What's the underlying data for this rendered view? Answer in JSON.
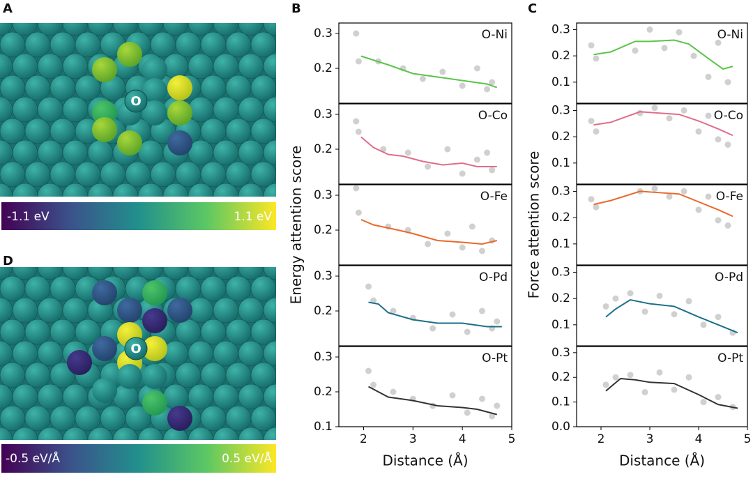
{
  "panel_labels": [
    "A",
    "B",
    "C",
    "D"
  ],
  "atom_labels": [
    "O",
    "O"
  ],
  "colorbars": [
    {
      "min_label": "-1.1 eV",
      "max_label": "1.1 eV"
    },
    {
      "min_label": "-0.5 eV/Å",
      "max_label": "0.5 eV/Å"
    }
  ],
  "chart_data": [
    {
      "type": "scatter",
      "title": "O-Ni",
      "xlim": [
        1.5,
        5
      ],
      "ylim": [
        0.1,
        0.33
      ],
      "yticks": [
        0.2,
        0.3
      ],
      "series": [
        {
          "kind": "scatter",
          "color": "#c8c8c8",
          "x": [
            1.85,
            1.9,
            2.3,
            2.8,
            3.2,
            3.6,
            4.0,
            4.3,
            4.5,
            4.6
          ],
          "values": [
            0.3,
            0.22,
            0.22,
            0.2,
            0.17,
            0.19,
            0.15,
            0.2,
            0.14,
            0.16
          ]
        },
        {
          "kind": "line",
          "color": "#5bc44a",
          "x": [
            1.95,
            2.5,
            3,
            3.5,
            4,
            4.5,
            4.7
          ],
          "values": [
            0.235,
            0.21,
            0.185,
            0.175,
            0.165,
            0.155,
            0.145
          ]
        }
      ]
    },
    {
      "type": "scatter",
      "title": "O-Co",
      "xlim": [
        1.5,
        5
      ],
      "ylim": [
        0.1,
        0.33
      ],
      "yticks": [
        0.2,
        0.3
      ],
      "series": [
        {
          "kind": "scatter",
          "color": "#c8c8c8",
          "x": [
            1.85,
            1.9,
            2.4,
            2.9,
            3.3,
            3.7,
            4.0,
            4.3,
            4.5,
            4.6
          ],
          "values": [
            0.28,
            0.25,
            0.2,
            0.19,
            0.15,
            0.2,
            0.13,
            0.17,
            0.19,
            0.14
          ]
        },
        {
          "kind": "line",
          "color": "#e06c8a",
          "x": [
            1.95,
            2.2,
            2.5,
            2.8,
            3.2,
            3.6,
            4,
            4.3,
            4.7
          ],
          "values": [
            0.235,
            0.205,
            0.185,
            0.18,
            0.165,
            0.155,
            0.16,
            0.15,
            0.15
          ]
        }
      ]
    },
    {
      "type": "scatter",
      "title": "O-Fe",
      "ylabel": "Energy attention score",
      "xlim": [
        1.5,
        5
      ],
      "ylim": [
        0.1,
        0.33
      ],
      "yticks": [
        0.2,
        0.3
      ],
      "series": [
        {
          "kind": "scatter",
          "color": "#c8c8c8",
          "x": [
            1.85,
            1.9,
            2.5,
            2.9,
            3.3,
            3.7,
            4.0,
            4.2,
            4.4,
            4.6
          ],
          "values": [
            0.32,
            0.25,
            0.21,
            0.2,
            0.16,
            0.19,
            0.15,
            0.21,
            0.14,
            0.17
          ]
        },
        {
          "kind": "line",
          "color": "#e8692a",
          "x": [
            1.95,
            2.2,
            2.7,
            3,
            3.5,
            4,
            4.4,
            4.7
          ],
          "values": [
            0.23,
            0.215,
            0.2,
            0.19,
            0.17,
            0.165,
            0.16,
            0.17
          ]
        }
      ]
    },
    {
      "type": "scatter",
      "title": "O-Pd",
      "xlim": [
        1.5,
        5
      ],
      "ylim": [
        0.1,
        0.33
      ],
      "yticks": [
        0.2,
        0.3
      ],
      "series": [
        {
          "kind": "scatter",
          "color": "#c8c8c8",
          "x": [
            2.1,
            2.2,
            2.6,
            3.0,
            3.4,
            3.8,
            4.1,
            4.4,
            4.6,
            4.7
          ],
          "values": [
            0.27,
            0.23,
            0.2,
            0.18,
            0.15,
            0.19,
            0.14,
            0.2,
            0.15,
            0.17
          ]
        },
        {
          "kind": "line",
          "color": "#1a6f8a",
          "x": [
            2.1,
            2.3,
            2.5,
            3,
            3.5,
            4,
            4.5,
            4.8
          ],
          "values": [
            0.225,
            0.22,
            0.195,
            0.175,
            0.165,
            0.165,
            0.155,
            0.155
          ]
        }
      ]
    },
    {
      "type": "scatter",
      "title": "O-Pt",
      "xlabel": "Distance (Å)",
      "xlim": [
        1.5,
        5
      ],
      "ylim": [
        0.1,
        0.33
      ],
      "yticks": [
        0.1,
        0.2,
        0.3
      ],
      "xticks": [
        2,
        3,
        4,
        5
      ],
      "series": [
        {
          "kind": "scatter",
          "color": "#c8c8c8",
          "x": [
            2.1,
            2.2,
            2.6,
            3.0,
            3.4,
            3.8,
            4.1,
            4.4,
            4.6,
            4.7
          ],
          "values": [
            0.26,
            0.22,
            0.2,
            0.18,
            0.16,
            0.19,
            0.14,
            0.18,
            0.13,
            0.16
          ]
        },
        {
          "kind": "line",
          "color": "#333333",
          "x": [
            2.1,
            2.5,
            3,
            3.5,
            4,
            4.3,
            4.7
          ],
          "values": [
            0.215,
            0.185,
            0.175,
            0.16,
            0.155,
            0.15,
            0.135
          ]
        }
      ]
    },
    {
      "type": "scatter",
      "title": "O-Ni",
      "xlim": [
        1.5,
        5
      ],
      "ylim": [
        0.02,
        0.325
      ],
      "yticks": [
        0.1,
        0.2,
        0.3
      ],
      "series": [
        {
          "kind": "scatter",
          "color": "#c8c8c8",
          "x": [
            1.8,
            1.9,
            2.7,
            3.0,
            3.3,
            3.6,
            3.9,
            4.2,
            4.4,
            4.6
          ],
          "values": [
            0.24,
            0.19,
            0.22,
            0.3,
            0.23,
            0.29,
            0.2,
            0.12,
            0.25,
            0.1
          ]
        },
        {
          "kind": "line",
          "color": "#5bc44a",
          "x": [
            1.85,
            2.2,
            2.7,
            3,
            3.5,
            3.8,
            4.2,
            4.5,
            4.7
          ],
          "values": [
            0.205,
            0.215,
            0.255,
            0.255,
            0.26,
            0.245,
            0.19,
            0.15,
            0.16
          ]
        }
      ]
    },
    {
      "type": "scatter",
      "title": "O-Co",
      "xlim": [
        1.5,
        5
      ],
      "ylim": [
        0.02,
        0.325
      ],
      "yticks": [
        0.1,
        0.2,
        0.3
      ],
      "series": [
        {
          "kind": "scatter",
          "color": "#c8c8c8",
          "x": [
            1.8,
            1.9,
            2.8,
            3.1,
            3.4,
            3.7,
            4.0,
            4.2,
            4.4,
            4.6
          ],
          "values": [
            0.26,
            0.22,
            0.29,
            0.31,
            0.27,
            0.3,
            0.22,
            0.28,
            0.19,
            0.17
          ]
        },
        {
          "kind": "line",
          "color": "#e06c8a",
          "x": [
            1.85,
            2.2,
            2.8,
            3.2,
            3.6,
            4,
            4.4,
            4.7
          ],
          "values": [
            0.245,
            0.255,
            0.295,
            0.29,
            0.285,
            0.26,
            0.23,
            0.205
          ]
        }
      ]
    },
    {
      "type": "scatter",
      "title": "O-Fe",
      "ylabel": "Force attention score",
      "xlim": [
        1.5,
        5
      ],
      "ylim": [
        0.02,
        0.325
      ],
      "yticks": [
        0.1,
        0.2,
        0.3
      ],
      "series": [
        {
          "kind": "scatter",
          "color": "#c8c8c8",
          "x": [
            1.8,
            1.9,
            2.8,
            3.1,
            3.4,
            3.7,
            4.0,
            4.2,
            4.4,
            4.6
          ],
          "values": [
            0.27,
            0.24,
            0.3,
            0.31,
            0.28,
            0.3,
            0.23,
            0.28,
            0.19,
            0.17
          ]
        },
        {
          "kind": "line",
          "color": "#e8692a",
          "x": [
            1.85,
            2.2,
            2.8,
            3.2,
            3.6,
            4,
            4.4,
            4.7
          ],
          "values": [
            0.25,
            0.265,
            0.3,
            0.295,
            0.29,
            0.26,
            0.23,
            0.205
          ]
        }
      ]
    },
    {
      "type": "scatter",
      "title": "O-Pd",
      "xlim": [
        1.5,
        5
      ],
      "ylim": [
        0.02,
        0.325
      ],
      "yticks": [
        0.1,
        0.2,
        0.3
      ],
      "series": [
        {
          "kind": "scatter",
          "color": "#c8c8c8",
          "x": [
            2.1,
            2.3,
            2.6,
            2.9,
            3.2,
            3.5,
            3.8,
            4.1,
            4.4,
            4.7
          ],
          "values": [
            0.17,
            0.2,
            0.22,
            0.15,
            0.21,
            0.14,
            0.19,
            0.1,
            0.13,
            0.07
          ]
        },
        {
          "kind": "line",
          "color": "#1a6f8a",
          "x": [
            2.1,
            2.3,
            2.6,
            3,
            3.5,
            4,
            4.4,
            4.8
          ],
          "values": [
            0.13,
            0.16,
            0.195,
            0.18,
            0.17,
            0.13,
            0.1,
            0.07
          ]
        }
      ]
    },
    {
      "type": "scatter",
      "title": "O-Pt",
      "xlabel": "Distance (Å)",
      "xlim": [
        1.5,
        5
      ],
      "ylim": [
        0,
        0.325
      ],
      "yticks": [
        {
          "value": 0,
          "label": "0.0"
        },
        0.1,
        0.2,
        0.3
      ],
      "xticks": [
        2,
        3,
        4,
        5
      ],
      "series": [
        {
          "kind": "scatter",
          "color": "#c8c8c8",
          "x": [
            2.1,
            2.3,
            2.6,
            2.9,
            3.2,
            3.5,
            3.8,
            4.1,
            4.4,
            4.7
          ],
          "values": [
            0.17,
            0.2,
            0.21,
            0.14,
            0.22,
            0.15,
            0.2,
            0.1,
            0.12,
            0.08
          ]
        },
        {
          "kind": "line",
          "color": "#333333",
          "x": [
            2.1,
            2.4,
            2.7,
            3,
            3.5,
            4,
            4.4,
            4.8
          ],
          "values": [
            0.145,
            0.195,
            0.19,
            0.18,
            0.175,
            0.13,
            0.09,
            0.075
          ]
        }
      ]
    }
  ]
}
